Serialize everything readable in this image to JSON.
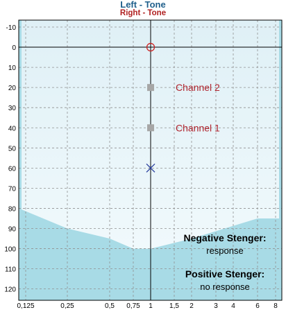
{
  "header": {
    "left_title": "Left - Tone",
    "right_title": "Right - Tone"
  },
  "audiogram": {
    "y_ticks": [
      "-10",
      "0",
      "10",
      "20",
      "30",
      "40",
      "50",
      "60",
      "70",
      "80",
      "90",
      "100",
      "110",
      "120"
    ],
    "y_values": [
      -10,
      0,
      10,
      20,
      30,
      40,
      50,
      60,
      70,
      80,
      90,
      100,
      110,
      120
    ],
    "x_ticks": [
      {
        "label": "0,125",
        "freq": 0.125
      },
      {
        "label": "0,25",
        "freq": 0.25
      },
      {
        "label": "0,5",
        "freq": 0.5
      },
      {
        "label": "0,75",
        "freq": 0.75
      },
      {
        "label": "1",
        "freq": 1
      },
      {
        "label": "1,5",
        "freq": 1.5
      },
      {
        "label": "2",
        "freq": 2
      },
      {
        "label": "3",
        "freq": 3
      },
      {
        "label": "4",
        "freq": 4
      },
      {
        "label": "6",
        "freq": 6
      },
      {
        "label": "8",
        "freq": 8
      }
    ],
    "right_threshold": {
      "freq": 1,
      "db": 0,
      "symbol": "circle",
      "color": "#cc2222"
    },
    "left_threshold": {
      "freq": 1,
      "db": 60,
      "symbol": "cross",
      "color": "#2a3f9f"
    },
    "channels": [
      {
        "label": "Channel 2",
        "freq": 1,
        "db": 20
      },
      {
        "label": "Channel 1",
        "freq": 1,
        "db": 40
      }
    ],
    "shaded_region": [
      {
        "freq": 0.125,
        "db": 80
      },
      {
        "freq": 0.25,
        "db": 90
      },
      {
        "freq": 0.5,
        "db": 95
      },
      {
        "freq": 0.75,
        "db": 100
      },
      {
        "freq": 1,
        "db": 100
      },
      {
        "freq": 2,
        "db": 95
      },
      {
        "freq": 6,
        "db": 85
      },
      {
        "freq": 8,
        "db": 85
      }
    ],
    "stenger": {
      "negative_title": "Negative Stenger:",
      "negative_value": "response",
      "positive_title": "Positive Stenger:",
      "positive_value": "no response"
    },
    "colors": {
      "fill_light": "#e6f4f9",
      "fill_dark": "#a8dbe6",
      "grid": "#909090",
      "channel_marker": "#a6a6a6",
      "channel_label": "#b0242e"
    }
  }
}
